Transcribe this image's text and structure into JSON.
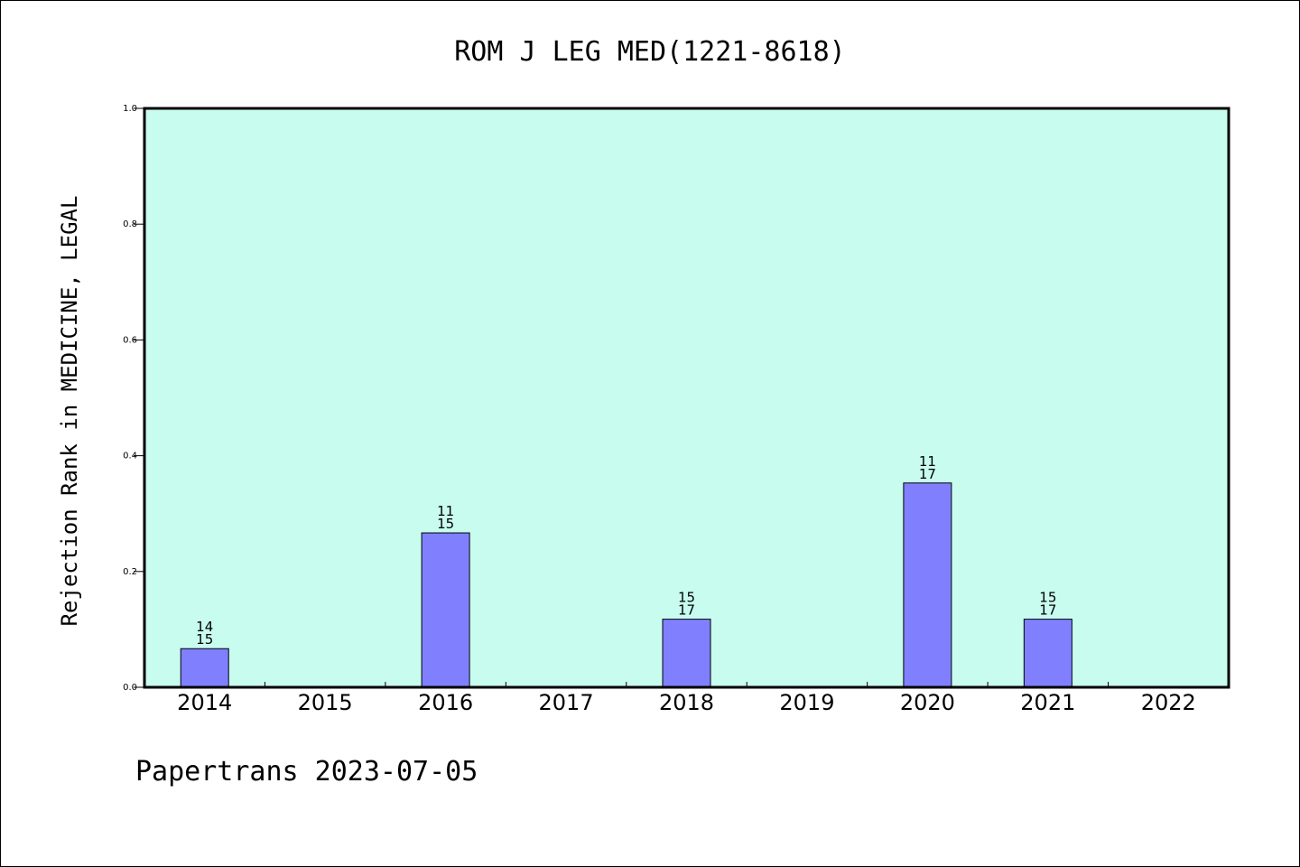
{
  "chart_data": {
    "type": "bar",
    "title": "ROM J LEG MED(1221-8618)",
    "ylabel": "Rejection Rank in MEDICINE, LEGAL",
    "xlabel": "",
    "categories": [
      "2014",
      "2015",
      "2016",
      "2017",
      "2018",
      "2019",
      "2020",
      "2021",
      "2022"
    ],
    "values": [
      0.0667,
      null,
      0.2667,
      null,
      0.1176,
      null,
      0.3529,
      0.1176,
      null
    ],
    "data_labels": [
      [
        "14",
        "15"
      ],
      null,
      [
        "11",
        "15"
      ],
      null,
      [
        "15",
        "17"
      ],
      null,
      [
        "11",
        "17"
      ],
      [
        "15",
        "17"
      ],
      null
    ],
    "ylim": [
      0,
      1.0
    ],
    "yticks": [
      "0.0",
      "0.2",
      "0.4",
      "0.6",
      "0.8",
      "1.0"
    ],
    "grid": false,
    "colors": {
      "plot_background": "#c8fcee",
      "bar_fill": "#8080ff",
      "bar_stroke": "#000000"
    }
  },
  "footer": "Papertrans 2023-07-05"
}
